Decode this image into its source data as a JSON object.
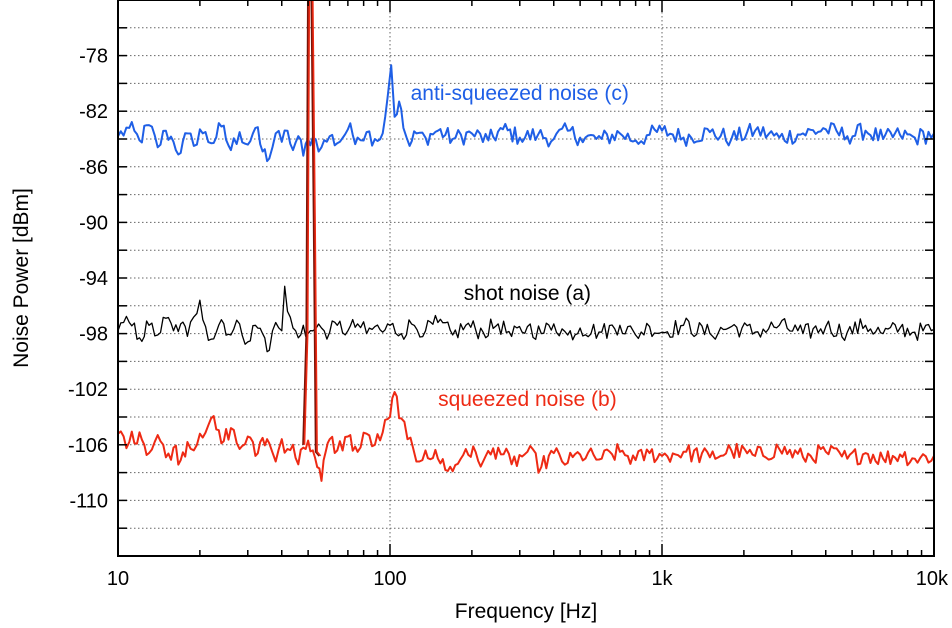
{
  "chart_data": {
    "type": "line",
    "xlabel": "Frequency [Hz]",
    "ylabel": "Noise Power [dBm]",
    "x_scale": "log",
    "xlim": [
      10,
      10000
    ],
    "ylim": [
      -114,
      -74
    ],
    "x_ticks": [
      {
        "value": 10,
        "label": "10"
      },
      {
        "value": 100,
        "label": "100"
      },
      {
        "value": 1000,
        "label": "1k"
      },
      {
        "value": 10000,
        "label": "10k"
      }
    ],
    "y_ticks": [
      -78,
      -82,
      -86,
      -90,
      -94,
      -98,
      -102,
      -106,
      -110
    ],
    "y_minor_grid_step": 2,
    "grid": true,
    "series": [
      {
        "name": "anti-squeezed noise (c)",
        "color": "#1f5fe6",
        "points": [
          [
            10,
            -83.8
          ],
          [
            11,
            -83.2
          ],
          [
            12,
            -84.1
          ],
          [
            13,
            -83.0
          ],
          [
            14,
            -84.6
          ],
          [
            15,
            -83.4
          ],
          [
            16,
            -84.2
          ],
          [
            17,
            -85.0
          ],
          [
            18,
            -83.6
          ],
          [
            19,
            -84.5
          ],
          [
            20,
            -83.3
          ],
          [
            22,
            -84.3
          ],
          [
            24,
            -83.1
          ],
          [
            26,
            -84.8
          ],
          [
            28,
            -83.5
          ],
          [
            30,
            -84.4
          ],
          [
            32,
            -83.2
          ],
          [
            34,
            -84.9
          ],
          [
            36,
            -85.4
          ],
          [
            38,
            -83.6
          ],
          [
            40,
            -84.2
          ],
          [
            42,
            -83.4
          ],
          [
            44,
            -84.8
          ],
          [
            46,
            -83.8
          ],
          [
            48,
            -85.2
          ],
          [
            50,
            -84.0
          ],
          [
            52,
            -83.9
          ],
          [
            56,
            -84.6
          ],
          [
            60,
            -83.8
          ],
          [
            64,
            -84.3
          ],
          [
            70,
            -83.3
          ],
          [
            76,
            -83.9
          ],
          [
            82,
            -83.5
          ],
          [
            88,
            -84.0
          ],
          [
            94,
            -83.6
          ],
          [
            98,
            -81.0
          ],
          [
            101,
            -78.7
          ],
          [
            104,
            -82.4
          ],
          [
            108,
            -81.3
          ],
          [
            112,
            -83.2
          ],
          [
            118,
            -84.5
          ],
          [
            125,
            -83.6
          ],
          [
            135,
            -83.9
          ],
          [
            150,
            -83.4
          ],
          [
            170,
            -84.0
          ],
          [
            200,
            -83.6
          ],
          [
            230,
            -84.1
          ],
          [
            260,
            -83.3
          ],
          [
            300,
            -83.9
          ],
          [
            350,
            -83.7
          ],
          [
            400,
            -84.0
          ],
          [
            450,
            -83.4
          ],
          [
            500,
            -83.9
          ],
          [
            600,
            -84.0
          ],
          [
            700,
            -83.6
          ],
          [
            800,
            -84.1
          ],
          [
            900,
            -83.7
          ],
          [
            1000,
            -83.4
          ],
          [
            1200,
            -83.9
          ],
          [
            1500,
            -83.5
          ],
          [
            1800,
            -84.0
          ],
          [
            2200,
            -83.4
          ],
          [
            2700,
            -83.9
          ],
          [
            3300,
            -83.6
          ],
          [
            4000,
            -83.3
          ],
          [
            4800,
            -83.8
          ],
          [
            5600,
            -83.4
          ],
          [
            6500,
            -84.0
          ],
          [
            7500,
            -83.7
          ],
          [
            8500,
            -83.9
          ],
          [
            10000,
            -83.6
          ]
        ]
      },
      {
        "name": "shot noise (a)",
        "color": "#000000",
        "points": [
          [
            10,
            -97.8
          ],
          [
            11,
            -97.2
          ],
          [
            12,
            -98.3
          ],
          [
            13,
            -97.4
          ],
          [
            14,
            -98.1
          ],
          [
            15,
            -96.9
          ],
          [
            16,
            -97.8
          ],
          [
            17,
            -97.3
          ],
          [
            18,
            -98.2
          ],
          [
            19,
            -96.8
          ],
          [
            20,
            -95.6
          ],
          [
            21,
            -97.5
          ],
          [
            22,
            -98.4
          ],
          [
            24,
            -97.0
          ],
          [
            26,
            -98.1
          ],
          [
            28,
            -97.3
          ],
          [
            30,
            -98.6
          ],
          [
            32,
            -97.4
          ],
          [
            34,
            -98.0
          ],
          [
            36,
            -99.2
          ],
          [
            38,
            -97.2
          ],
          [
            40,
            -97.8
          ],
          [
            41,
            -94.6
          ],
          [
            42,
            -96.4
          ],
          [
            44,
            -97.6
          ],
          [
            46,
            -98.3
          ],
          [
            48,
            -97.4
          ],
          [
            50,
            -98.0
          ],
          [
            52,
            -97.8
          ],
          [
            56,
            -97.6
          ],
          [
            60,
            -97.9
          ],
          [
            64,
            -97.4
          ],
          [
            70,
            -97.8
          ],
          [
            76,
            -97.3
          ],
          [
            82,
            -98.0
          ],
          [
            88,
            -97.5
          ],
          [
            94,
            -97.9
          ],
          [
            100,
            -97.4
          ],
          [
            110,
            -98.0
          ],
          [
            120,
            -97.3
          ],
          [
            135,
            -97.8
          ],
          [
            150,
            -97.2
          ],
          [
            170,
            -98.1
          ],
          [
            190,
            -97.4
          ],
          [
            220,
            -97.9
          ],
          [
            250,
            -97.3
          ],
          [
            280,
            -98.2
          ],
          [
            320,
            -97.5
          ],
          [
            360,
            -98.0
          ],
          [
            400,
            -97.3
          ],
          [
            450,
            -98.1
          ],
          [
            500,
            -97.6
          ],
          [
            600,
            -97.9
          ],
          [
            700,
            -97.4
          ],
          [
            800,
            -98.1
          ],
          [
            900,
            -97.5
          ],
          [
            1000,
            -97.9
          ],
          [
            1200,
            -97.4
          ],
          [
            1500,
            -98.0
          ],
          [
            1800,
            -97.5
          ],
          [
            2200,
            -97.9
          ],
          [
            2700,
            -97.4
          ],
          [
            3300,
            -98.0
          ],
          [
            4000,
            -97.5
          ],
          [
            4800,
            -97.9
          ],
          [
            5600,
            -97.4
          ],
          [
            6500,
            -98.0
          ],
          [
            7500,
            -97.6
          ],
          [
            8500,
            -97.9
          ],
          [
            10000,
            -97.7
          ]
        ]
      },
      {
        "name": "squeezed noise (b)",
        "color": "#ee2a14",
        "points": [
          [
            10,
            -105.2
          ],
          [
            11,
            -105.8
          ],
          [
            12,
            -105.1
          ],
          [
            13,
            -106.6
          ],
          [
            14,
            -105.3
          ],
          [
            15,
            -106.9
          ],
          [
            16,
            -106.2
          ],
          [
            17,
            -107.1
          ],
          [
            18,
            -105.8
          ],
          [
            19,
            -106.4
          ],
          [
            20,
            -105.2
          ],
          [
            22,
            -104.1
          ],
          [
            24,
            -105.9
          ],
          [
            26,
            -104.8
          ],
          [
            28,
            -106.3
          ],
          [
            30,
            -105.4
          ],
          [
            32,
            -106.8
          ],
          [
            34,
            -105.5
          ],
          [
            36,
            -105.9
          ],
          [
            38,
            -107.2
          ],
          [
            40,
            -105.6
          ],
          [
            42,
            -106.3
          ],
          [
            44,
            -106.0
          ],
          [
            46,
            -107.4
          ],
          [
            48,
            -106.2
          ],
          [
            50,
            -105.7
          ],
          [
            52,
            -106.4
          ],
          [
            54,
            -107.6
          ],
          [
            56,
            -108.6
          ],
          [
            58,
            -106.5
          ],
          [
            60,
            -105.6
          ],
          [
            64,
            -106.4
          ],
          [
            70,
            -105.4
          ],
          [
            76,
            -106.5
          ],
          [
            82,
            -105.2
          ],
          [
            88,
            -106.0
          ],
          [
            94,
            -105.1
          ],
          [
            100,
            -104.0
          ],
          [
            104,
            -102.2
          ],
          [
            110,
            -104.1
          ],
          [
            116,
            -105.6
          ],
          [
            125,
            -107.2
          ],
          [
            135,
            -106.4
          ],
          [
            150,
            -107.0
          ],
          [
            170,
            -107.9
          ],
          [
            190,
            -106.3
          ],
          [
            220,
            -107.2
          ],
          [
            250,
            -106.2
          ],
          [
            280,
            -107.4
          ],
          [
            320,
            -106.5
          ],
          [
            360,
            -107.6
          ],
          [
            400,
            -106.6
          ],
          [
            450,
            -107.3
          ],
          [
            500,
            -106.7
          ],
          [
            600,
            -107.0
          ],
          [
            700,
            -106.5
          ],
          [
            800,
            -107.1
          ],
          [
            900,
            -106.6
          ],
          [
            1000,
            -106.8
          ],
          [
            1200,
            -106.5
          ],
          [
            1500,
            -106.9
          ],
          [
            1800,
            -106.4
          ],
          [
            2200,
            -106.8
          ],
          [
            2700,
            -106.3
          ],
          [
            3300,
            -106.9
          ],
          [
            4000,
            -106.5
          ],
          [
            4800,
            -107.0
          ],
          [
            5600,
            -106.6
          ],
          [
            6500,
            -107.0
          ],
          [
            7500,
            -106.7
          ],
          [
            8500,
            -107.0
          ],
          [
            10000,
            -106.8
          ]
        ]
      },
      {
        "name": "",
        "color": "#7a1408",
        "points": [
          [
            48,
            -106.0
          ],
          [
            49.3,
            -98.0
          ],
          [
            50.0,
            -74.0
          ],
          [
            50.5,
            -74.0
          ],
          [
            51.5,
            -74.0
          ],
          [
            52.5,
            -90.0
          ],
          [
            53.4,
            -106.5
          ],
          [
            55,
            -106.8
          ]
        ]
      }
    ],
    "annotations": [
      {
        "text": "anti-squeezed noise (c)",
        "color": "#1f5fe6",
        "x": 300,
        "y": -81.2
      },
      {
        "text": "shot noise (a)",
        "color": "#000000",
        "x": 320,
        "y": -95.6
      },
      {
        "text": "squeezed noise (b)",
        "color": "#ee2a14",
        "x": 320,
        "y": -103.2
      }
    ]
  }
}
